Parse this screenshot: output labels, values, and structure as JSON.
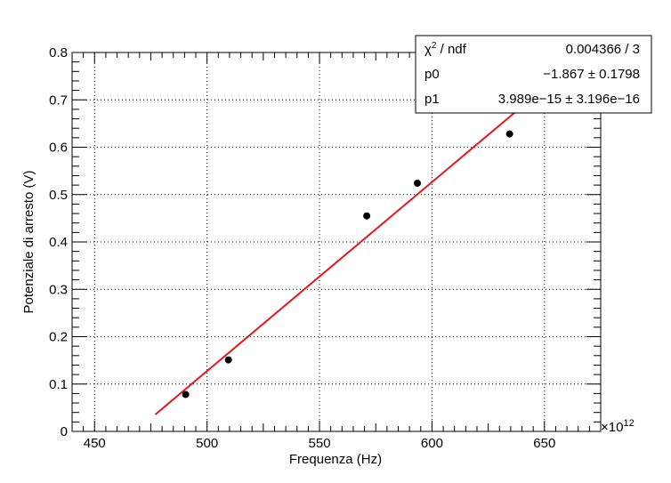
{
  "chart_data": {
    "type": "scatter",
    "xlabel": "Frequenza (Hz)",
    "ylabel": "Potenziale di arresto (V)",
    "x_multiplier_label": "×10",
    "x_multiplier_exp": "12",
    "x_scale": 1000000000000.0,
    "xlim": [
      440,
      675
    ],
    "ylim": [
      0,
      0.8
    ],
    "x_ticks": [
      450,
      500,
      550,
      600,
      650
    ],
    "x_tick_labels": [
      "450",
      "500",
      "550",
      "600",
      "650"
    ],
    "y_ticks": [
      0,
      0.1,
      0.2,
      0.3,
      0.4,
      0.5,
      0.6,
      0.7,
      0.8
    ],
    "y_tick_labels": [
      "0",
      "0.1",
      "0.2",
      "0.3",
      "0.4",
      "0.5",
      "0.6",
      "0.7",
      "0.8"
    ],
    "grid": true,
    "series": [
      {
        "type": "scatter",
        "color": "#000000",
        "x": [
          490.5,
          509.5,
          571.0,
          593.5,
          634.5
        ],
        "y": [
          0.078,
          0.151,
          0.455,
          0.524,
          0.628
        ]
      }
    ],
    "fit": {
      "type": "line",
      "color": "#e8141c",
      "p0_value": -1.867,
      "p1_value": 3.989e-15,
      "x_range": [
        477,
        680
      ]
    },
    "stats_box": {
      "rows": [
        {
          "label_main": "χ",
          "label_sup": "2",
          "label_rest": " / ndf",
          "value": "0.004366 / 3"
        },
        {
          "label_main": "p0",
          "label_sup": "",
          "label_rest": "",
          "value": "−1.867 ± 0.1798"
        },
        {
          "label_main": "p1",
          "label_sup": "",
          "label_rest": "",
          "value": "3.989e−15 ± 3.196e−16"
        }
      ]
    }
  }
}
